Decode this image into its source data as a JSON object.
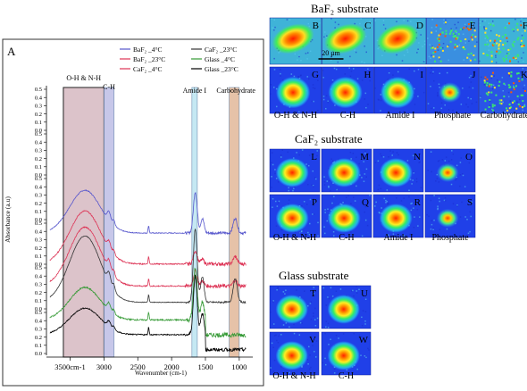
{
  "panel_a": {
    "label": "A",
    "chart_data": {
      "type": "line",
      "xlabel": "Wavenumber (cm-1)",
      "ylabel": "Absorbance (a.u)",
      "x_axis_reversed": true,
      "xlim": [
        3850,
        800
      ],
      "x_tick_labels": [
        "3500cm-1",
        "3000",
        "2500",
        "2000",
        "1500",
        "1000"
      ],
      "x_tick_values": [
        3500,
        3000,
        2500,
        2000,
        1500,
        1000
      ],
      "y_tick_labels": [
        "0.0",
        "0.1",
        "0.2",
        "0.3",
        "0.4",
        "0.5"
      ],
      "legend_position": "top",
      "legend": [
        {
          "name": "BaF₂ _4°C",
          "color": "#5555cc"
        },
        {
          "name": "CaF₂ _23°C",
          "color": "#333333"
        },
        {
          "name": "BaF₂ _23°C",
          "color": "#dd3355"
        },
        {
          "name": "Glass _4°C",
          "color": "#339933"
        },
        {
          "name": "CaF₂ _4°C",
          "color": "#dd3355"
        },
        {
          "name": "Glass _23°C",
          "color": "#000000"
        }
      ],
      "bands": [
        {
          "label": "O-H & N-H",
          "range": [
            3600,
            3000
          ],
          "color": "#c9a3ad"
        },
        {
          "label": "C-H",
          "range": [
            3000,
            2850
          ],
          "color": "#a9a9dd"
        },
        {
          "label": "Amide I",
          "range": [
            1700,
            1620
          ],
          "color": "#a6dcec"
        },
        {
          "label": "Carbohydrate",
          "range": [
            1150,
            1000
          ],
          "color": "#d9a27a"
        }
      ],
      "series": [
        {
          "color": "#5555cc",
          "offset": 0.36,
          "base": 0.17,
          "oh": 0.29,
          "ch": 0.06,
          "amide": 0.28,
          "carb": 0.1,
          "noise": 0.006
        },
        {
          "color": "#dd3355",
          "offset": 0.17,
          "base": 0.15,
          "oh": 0.36,
          "ch": 0.05,
          "amide": 0.09,
          "carb": 0.05,
          "noise": 0.008
        },
        {
          "color": "#dd3355",
          "offset": 0.04,
          "base": 0.13,
          "oh": 0.4,
          "ch": 0.06,
          "amide": 0.1,
          "carb": 0.04,
          "noise": 0.008
        },
        {
          "color": "#333333",
          "offset": -0.06,
          "base": 0.12,
          "oh": 0.45,
          "ch": 0.07,
          "amide": 0.5,
          "carb": 0.16,
          "noise": 0.004
        },
        {
          "color": "#339933",
          "offset": -0.18,
          "base": 0.12,
          "oh": 0.22,
          "ch": 0.05,
          "amide": 0.35,
          "carb": 0.0,
          "noise": 0.01
        },
        {
          "color": "#000000",
          "offset": -0.28,
          "base": 0.12,
          "oh": 0.18,
          "ch": 0.04,
          "amide": 0.4,
          "carb": 0.0,
          "noise": 0.008
        }
      ]
    }
  },
  "sections": [
    {
      "title": "BaF₂ substrate",
      "scalebar": "20 μm",
      "rows": [
        [
          {
            "letter": "B",
            "kind": "blob",
            "bg": "#3fb3d8"
          },
          {
            "letter": "C",
            "kind": "blob",
            "bg": "#3fb3d8"
          },
          {
            "letter": "D",
            "kind": "blob",
            "bg": "#3fb3d8"
          },
          {
            "letter": "E",
            "kind": "noise",
            "bg": "#3a8fe0"
          },
          {
            "letter": "F",
            "kind": "noise",
            "bg": "#3fb3d8"
          }
        ],
        [
          {
            "letter": "G",
            "kind": "spot",
            "bg": "#2040e8"
          },
          {
            "letter": "H",
            "kind": "spot",
            "bg": "#2040e8"
          },
          {
            "letter": "I",
            "kind": "spot",
            "bg": "#2040e8"
          },
          {
            "letter": "J",
            "kind": "small",
            "bg": "#2040e8"
          },
          {
            "letter": "K",
            "kind": "noise",
            "bg": "#2a55e6"
          }
        ]
      ],
      "labels": [
        "O-H & N-H",
        "C-H",
        "Amide I",
        "Phosphate",
        "Carbohydrate"
      ]
    },
    {
      "title": "CaF₂ substrate",
      "rows": [
        [
          {
            "letter": "L",
            "kind": "spot",
            "bg": "#2040e8"
          },
          {
            "letter": "M",
            "kind": "spot",
            "bg": "#2040e8"
          },
          {
            "letter": "N",
            "kind": "spot",
            "bg": "#2040e8"
          },
          {
            "letter": "O",
            "kind": "small",
            "bg": "#2040e8"
          }
        ],
        [
          {
            "letter": "P",
            "kind": "spot",
            "bg": "#2040e8"
          },
          {
            "letter": "Q",
            "kind": "spot",
            "bg": "#2040e8"
          },
          {
            "letter": "R",
            "kind": "spot",
            "bg": "#2040e8"
          },
          {
            "letter": "S",
            "kind": "small",
            "bg": "#2040e8"
          }
        ]
      ],
      "labels": [
        "O-H & N-H",
        "C-H",
        "Amide I",
        "Phosphate"
      ]
    },
    {
      "title": "Glass substrate",
      "rows": [
        [
          {
            "letter": "T",
            "kind": "spot",
            "bg": "#2040e8"
          },
          {
            "letter": "U",
            "kind": "spot",
            "bg": "#2040e8"
          }
        ],
        [
          {
            "letter": "V",
            "kind": "spot",
            "bg": "#2040e8"
          },
          {
            "letter": "W",
            "kind": "spot",
            "bg": "#2040e8"
          }
        ]
      ],
      "labels": [
        "O-H & N-H",
        "C-H"
      ]
    }
  ]
}
